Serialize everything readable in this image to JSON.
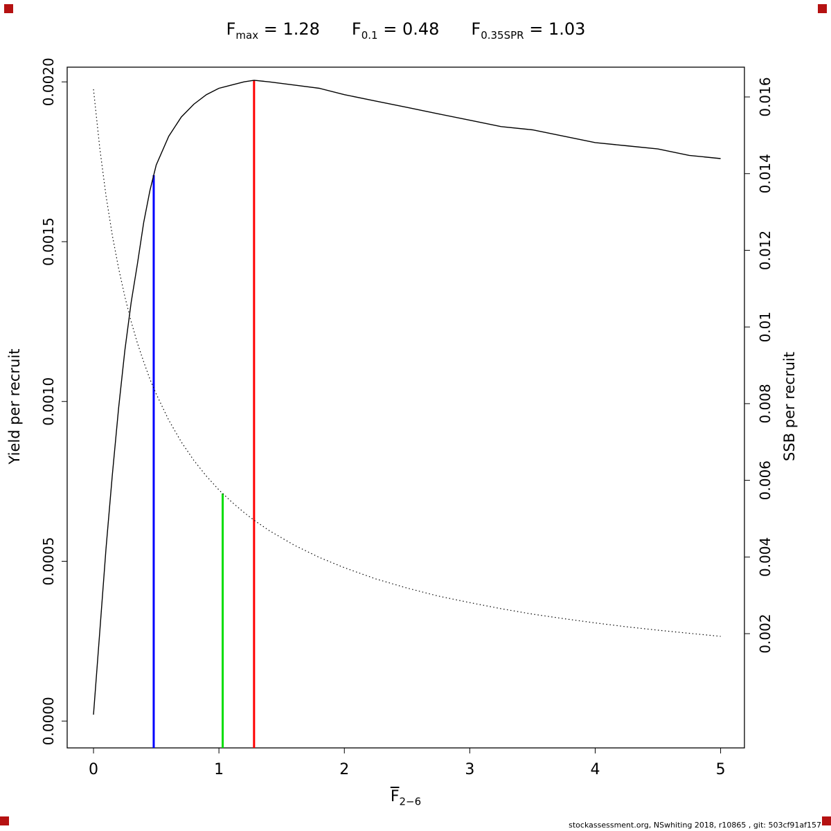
{
  "title": {
    "parts": [
      {
        "base": "F",
        "sub": "max",
        "rest": " = 1.28"
      },
      {
        "base": "F",
        "sub": "0.1",
        "rest": " = 0.48"
      },
      {
        "base": "F",
        "sub": "0.35SPR",
        "rest": " = 1.03"
      }
    ]
  },
  "footer": {
    "text": "stockassessment.org, NSwhiting 2018, r10865 , git: 503cf91af157"
  },
  "colors": {
    "curve": "#000000",
    "f01_line": "#0000ff",
    "f035spr_line": "#00dd00",
    "fmax_line": "#ff0000",
    "corner_marker": "#b51111"
  },
  "chart_data": {
    "type": "line",
    "title": "Fmax = 1.28    F0.1 = 0.48    F0.35SPR = 1.03",
    "x_axis": {
      "label_base": "F",
      "label_sub": "2−6",
      "range": [
        -0.21,
        5.19
      ],
      "ticks": [
        0,
        1,
        2,
        3,
        4,
        5
      ],
      "tick_labels": [
        "0",
        "1",
        "2",
        "3",
        "4",
        "5"
      ]
    },
    "y_left": {
      "label": "Yield per recruit",
      "range": [
        -8.4e-05,
        0.002046
      ],
      "ticks": [
        0,
        0.0005,
        0.001,
        0.0015,
        0.002
      ],
      "tick_labels": [
        "0.0000",
        "0.0005",
        "0.0010",
        "0.0015",
        "0.0020"
      ]
    },
    "y_right": {
      "label": "SSB per recruit",
      "range": [
        -0.00098,
        0.016777
      ],
      "ticks": [
        0.002,
        0.004,
        0.006,
        0.008,
        0.01,
        0.012,
        0.014,
        0.016
      ],
      "tick_labels": [
        "0.002",
        "0.004",
        "0.006",
        "0.008",
        "0.01",
        "0.012",
        "0.014",
        "0.016"
      ]
    },
    "x": [
      0,
      0.05,
      0.1,
      0.15,
      0.2,
      0.25,
      0.3,
      0.35,
      0.4,
      0.45,
      0.5,
      0.6,
      0.7,
      0.8,
      0.9,
      1.0,
      1.1,
      1.2,
      1.28,
      1.4,
      1.6,
      1.8,
      2.0,
      2.25,
      2.5,
      2.75,
      3.0,
      3.25,
      3.5,
      3.75,
      4.0,
      4.25,
      4.5,
      4.75,
      5.0
    ],
    "series": [
      {
        "name": "Yield per recruit",
        "axis": "left",
        "style": "solid",
        "color": "#000000",
        "values": [
          2e-05,
          0.00028,
          0.00054,
          0.00077,
          0.00098,
          0.00116,
          0.00131,
          0.00143,
          0.00156,
          0.00166,
          0.00174,
          0.00183,
          0.00189,
          0.00193,
          0.00196,
          0.00198,
          0.00199,
          0.002,
          0.002005,
          0.002,
          0.00199,
          0.00198,
          0.00196,
          0.00194,
          0.00192,
          0.0019,
          0.00188,
          0.00186,
          0.00185,
          0.00183,
          0.00181,
          0.0018,
          0.00179,
          0.00177,
          0.00176
        ]
      },
      {
        "name": "SSB per recruit",
        "axis": "right",
        "style": "dotted",
        "color": "#000000",
        "values": [
          0.0162,
          0.01466,
          0.01342,
          0.01239,
          0.01153,
          0.01079,
          0.01014,
          0.00958,
          0.00909,
          0.00864,
          0.00825,
          0.00757,
          0.007,
          0.00652,
          0.00611,
          0.00575,
          0.00544,
          0.00516,
          0.00496,
          0.00469,
          0.00431,
          0.00399,
          0.00372,
          0.00343,
          0.00319,
          0.00298,
          0.00281,
          0.00265,
          0.00251,
          0.00239,
          0.00228,
          0.00218,
          0.00209,
          0.00201,
          0.00193
        ]
      }
    ],
    "ref_lines": [
      {
        "name": "F0.1",
        "slug": "f01-reference-line",
        "x": 0.48,
        "series_index": 0,
        "color": "#0000ff"
      },
      {
        "name": "F0.35SPR",
        "slug": "f035spr-reference-line",
        "x": 1.03,
        "series_index": 1,
        "color": "#00dd00"
      },
      {
        "name": "Fmax",
        "slug": "fmax-reference-line",
        "x": 1.28,
        "series_index": 0,
        "color": "#ff0000"
      }
    ],
    "legend": "none",
    "grid": false
  }
}
